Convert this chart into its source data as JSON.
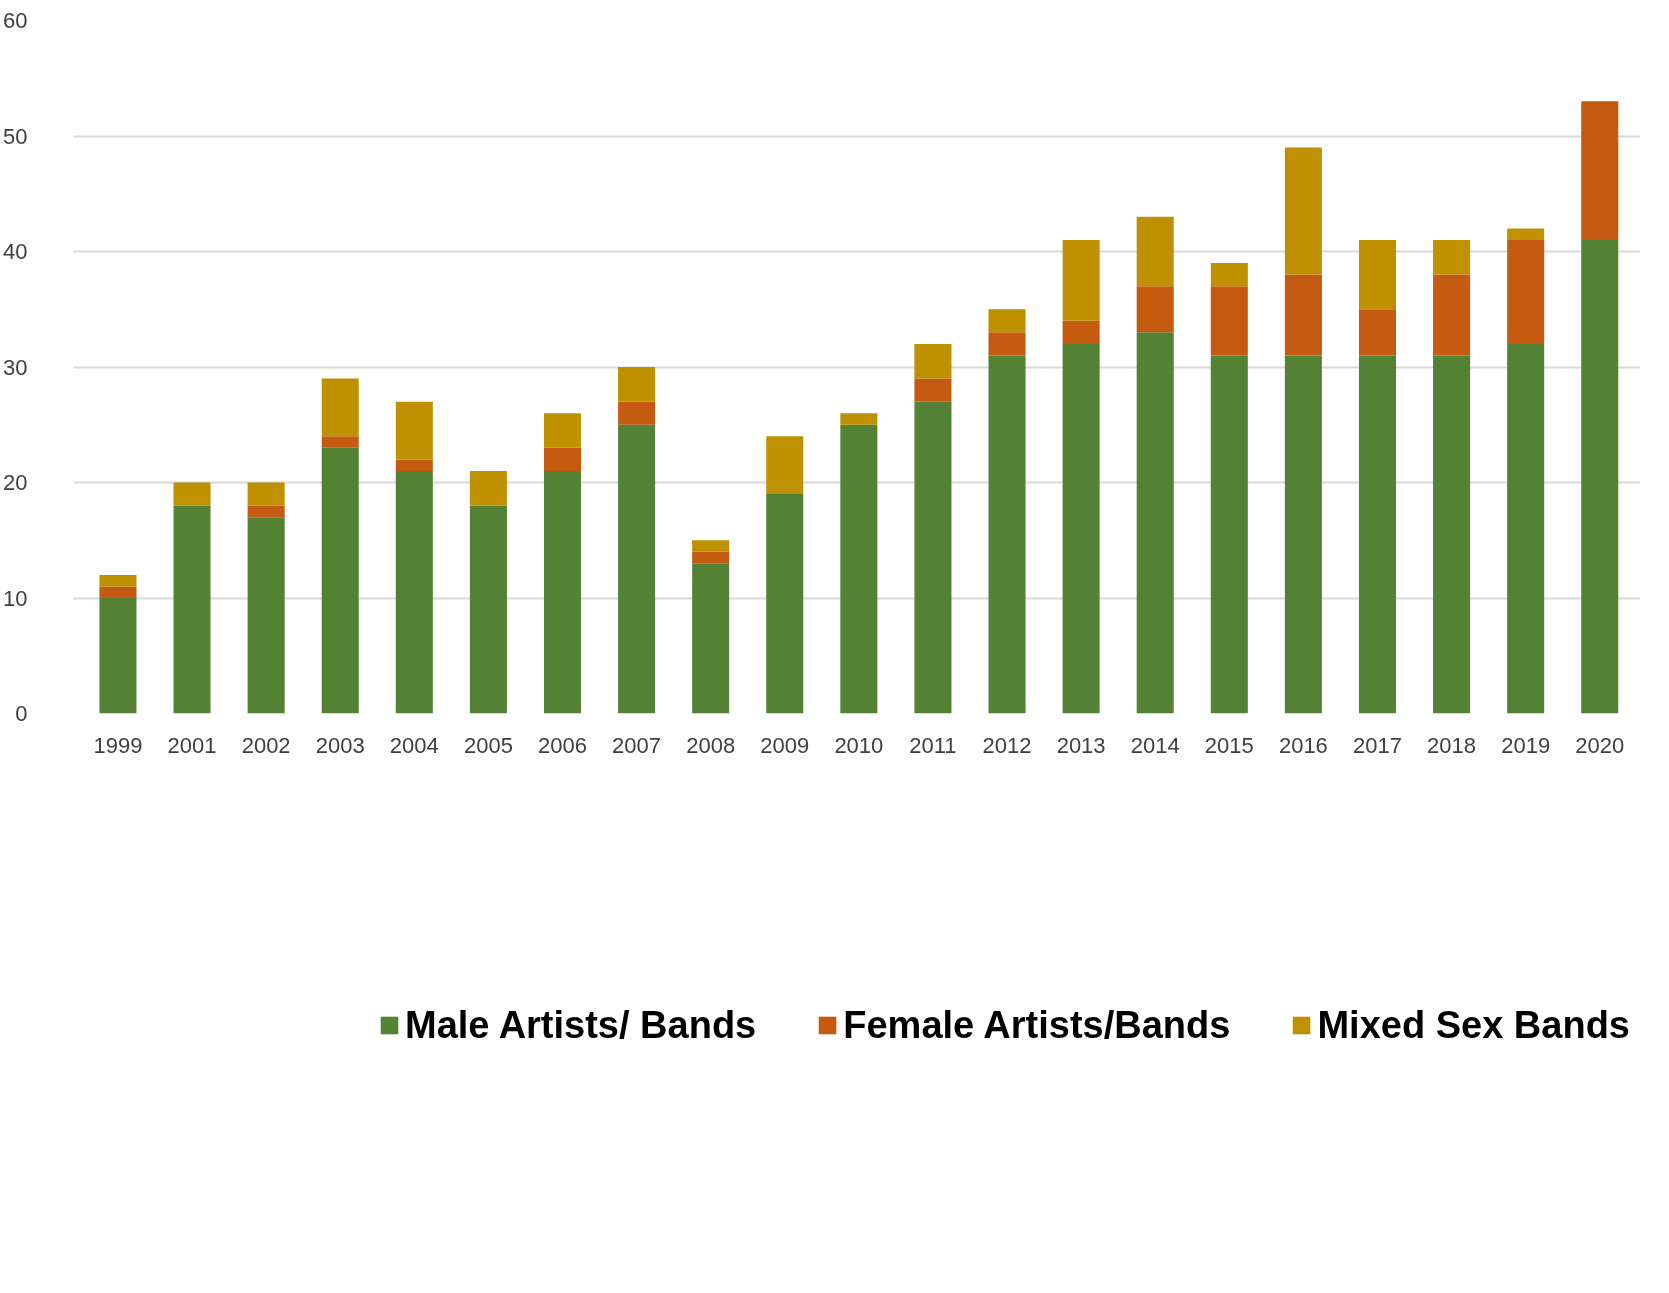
{
  "chart_data": {
    "type": "bar",
    "stacked": true,
    "categories": [
      "1999",
      "2001",
      "2002",
      "2003",
      "2004",
      "2005",
      "2006",
      "2007",
      "2008",
      "2009",
      "2010",
      "2011",
      "2012",
      "2013",
      "2014",
      "2015",
      "2016",
      "2017",
      "2018",
      "2019",
      "2020"
    ],
    "series": [
      {
        "name": "Male Artists/ Bands",
        "color": "#548235",
        "values": [
          10,
          18,
          17,
          23,
          21,
          18,
          21,
          25,
          13,
          19,
          25,
          27,
          31,
          32,
          33,
          31,
          31,
          31,
          31,
          32,
          41
        ]
      },
      {
        "name": "Female Artists/Bands",
        "color": "#c55a11",
        "values": [
          1,
          0,
          1,
          1,
          1,
          0,
          2,
          2,
          1,
          0,
          0,
          2,
          2,
          2,
          4,
          6,
          7,
          4,
          7,
          9,
          12
        ]
      },
      {
        "name": "Mixed Sex Bands",
        "color": "#bf9000",
        "values": [
          1,
          2,
          2,
          5,
          5,
          3,
          3,
          3,
          1,
          5,
          1,
          3,
          2,
          7,
          6,
          2,
          11,
          6,
          3,
          1,
          0
        ]
      }
    ],
    "ylim": [
      0,
      60
    ],
    "yticks": [
      0,
      10,
      20,
      30,
      40,
      50,
      60
    ],
    "grid": "y",
    "legend": "bottom"
  }
}
